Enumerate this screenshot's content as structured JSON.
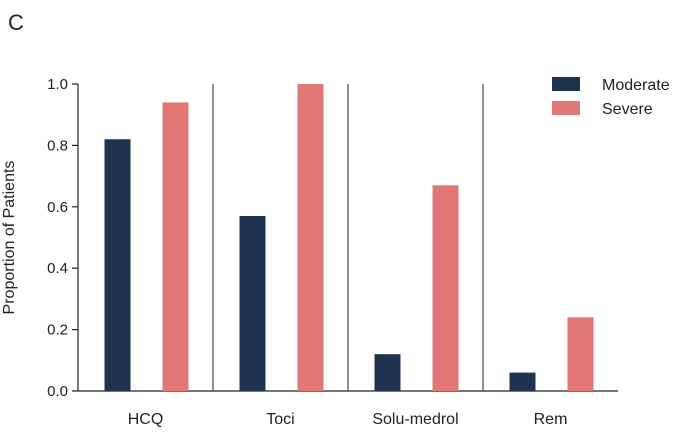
{
  "panel_label": "C",
  "chart_data": {
    "type": "bar",
    "title": "",
    "xlabel": "",
    "ylabel": "Proportion of Patients",
    "ylim": [
      0,
      1.0
    ],
    "yticks": [
      "0.0",
      "0.2",
      "0.4",
      "0.6",
      "0.8",
      "1.0"
    ],
    "categories": [
      "HCQ",
      "Toci",
      "Solu-medrol",
      "Rem"
    ],
    "series": [
      {
        "name": "Moderate",
        "color": "#1f3350",
        "values": [
          0.82,
          0.57,
          0.12,
          0.06
        ]
      },
      {
        "name": "Severe",
        "color": "#e27875",
        "values": [
          0.94,
          1.0,
          0.67,
          0.24
        ]
      }
    ],
    "legend_position": "top-right",
    "grid": false,
    "group_separators": true
  }
}
